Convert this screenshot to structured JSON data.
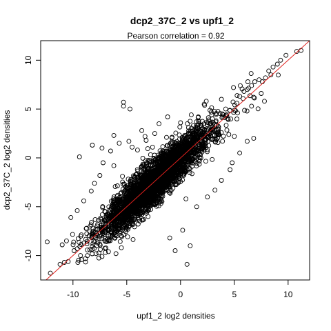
{
  "chart_data": {
    "type": "scatter",
    "title": "dcp2_37C_2 vs upf1_2",
    "subtitle": "Pearson correlation =  0.92",
    "xlabel": "upf1_2 log2 densities",
    "ylabel": "dcp2_37C_2 log2 densities",
    "xlim": [
      -13,
      12
    ],
    "ylim": [
      -12.5,
      12
    ],
    "x_ticks": [
      -10,
      -5,
      0,
      5,
      10
    ],
    "y_ticks": [
      -10,
      -5,
      0,
      5,
      10
    ],
    "grid": false,
    "legend": "none",
    "point_style": "open-circle",
    "point_color": "#000000",
    "reference_line": {
      "type": "identity",
      "slope": 1,
      "intercept": 0,
      "color": "#e0201c"
    },
    "correlation": 0.92,
    "n_bulk_points": 3600,
    "points": [
      [
        10.8,
        10.9
      ],
      [
        11.2,
        11.0
      ],
      [
        9.8,
        10.5
      ],
      [
        9.3,
        10.0
      ],
      [
        9.0,
        9.6
      ],
      [
        8.6,
        9.3
      ],
      [
        8.2,
        8.9
      ],
      [
        8.4,
        8.5
      ],
      [
        7.9,
        8.2
      ],
      [
        7.6,
        7.8
      ],
      [
        7.3,
        8.0
      ],
      [
        6.9,
        7.8
      ],
      [
        6.6,
        7.4
      ],
      [
        6.2,
        7.0
      ],
      [
        5.9,
        6.8
      ],
      [
        5.5,
        6.3
      ],
      [
        6.8,
        6.2
      ],
      [
        7.5,
        6.6
      ],
      [
        -5.3,
        5.7
      ],
      [
        -4.7,
        5.0
      ],
      [
        -5.3,
        5.3
      ],
      [
        -8.2,
        1.3
      ],
      [
        -7.3,
        1.0
      ],
      [
        -9.4,
        0.1
      ],
      [
        -3.6,
        2.8
      ],
      [
        -3.3,
        2.2
      ],
      [
        -2.4,
        2.5
      ],
      [
        -6.5,
        0.7
      ],
      [
        -4.8,
        1.7
      ],
      [
        -12.1,
        -11.8
      ],
      [
        -11.2,
        -10.9
      ],
      [
        -10.8,
        -10.7
      ],
      [
        -12.4,
        -8.6
      ],
      [
        -11.0,
        -8.9
      ],
      [
        -10.6,
        -8.5
      ],
      [
        -9.9,
        -9.5
      ],
      [
        -9.3,
        -10.0
      ],
      [
        -9.6,
        -9.3
      ],
      [
        -8.7,
        -8.8
      ],
      [
        -7.3,
        -10.1
      ],
      [
        -6.7,
        -9.6
      ],
      [
        -6.0,
        -9.8
      ],
      [
        -5.5,
        -9.2
      ],
      [
        -7.8,
        -9.0
      ],
      [
        0.6,
        -10.9
      ],
      [
        -0.5,
        -9.5
      ],
      [
        0.9,
        -9.0
      ],
      [
        0.2,
        -7.4
      ],
      [
        -1.0,
        -8.2
      ],
      [
        0.5,
        -4.2
      ],
      [
        1.5,
        -5.0
      ],
      [
        2.5,
        -4.0
      ],
      [
        3.2,
        -3.3
      ],
      [
        3.8,
        -2.3
      ],
      [
        4.6,
        -1.2
      ],
      [
        5.5,
        0.5
      ],
      [
        4.8,
        -0.5
      ],
      [
        6.2,
        1.7
      ],
      [
        6.8,
        2.0
      ],
      [
        5.0,
        2.2
      ],
      [
        3.3,
        3.8
      ],
      [
        -8.3,
        -3.4
      ],
      [
        -9.0,
        -4.4
      ],
      [
        -9.6,
        -5.4
      ],
      [
        -10.2,
        -6.1
      ],
      [
        -8.4,
        -7.0
      ],
      [
        -7.5,
        -1.8
      ],
      [
        -8.0,
        -2.6
      ],
      [
        -6.2,
        -0.8
      ],
      [
        -7.2,
        -0.5
      ],
      [
        -1.2,
        4.2
      ],
      [
        -2.0,
        3.5
      ],
      [
        1.0,
        4.4
      ],
      [
        2.2,
        5.5
      ],
      [
        0.0,
        3.6
      ],
      [
        -6.2,
        2.3
      ],
      [
        -5.7,
        1.5
      ],
      [
        -4.0,
        0.8
      ],
      [
        -4.5,
        1.1
      ],
      [
        -3.2,
        1.8
      ],
      [
        -2.6,
        1.1
      ],
      [
        -1.3,
        2.1
      ],
      [
        4.2,
        5.0
      ],
      [
        3.8,
        6.0
      ],
      [
        2.9,
        4.4
      ],
      [
        5.3,
        4.6
      ],
      [
        6.6,
        5.3
      ],
      [
        7.8,
        5.8
      ]
    ]
  }
}
